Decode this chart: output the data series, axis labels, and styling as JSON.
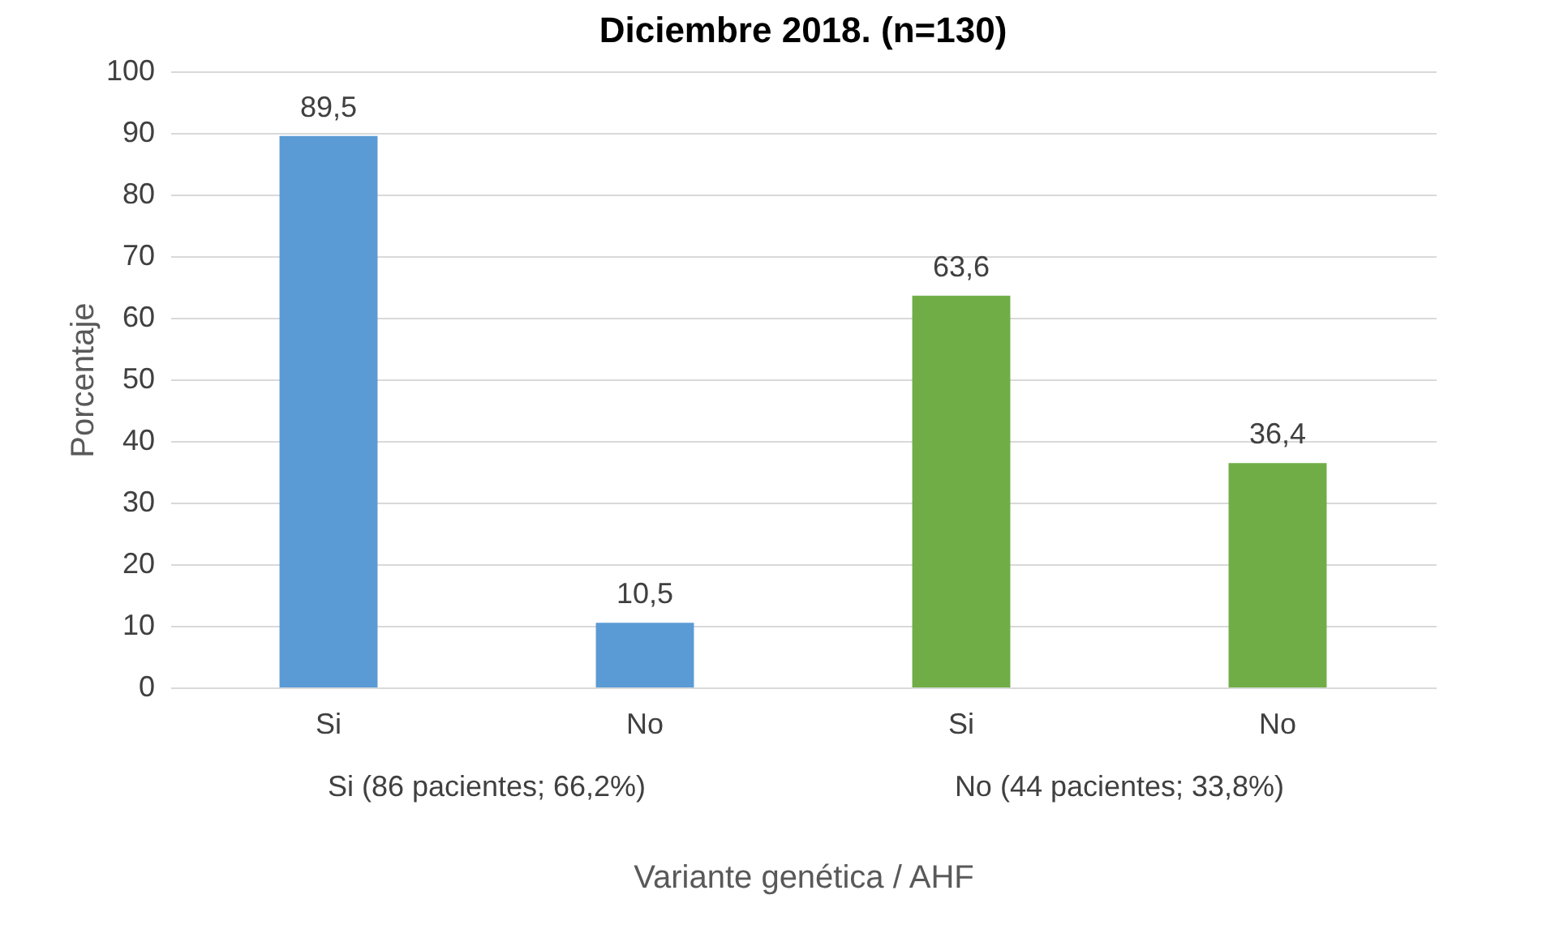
{
  "chart_data": {
    "type": "bar",
    "title": "Diciembre 2018. (n=130)",
    "xlabel": "Variante genética / AHF",
    "ylabel": "Porcentaje",
    "categories": [
      "Si",
      "No",
      "Si",
      "No"
    ],
    "values": [
      89.5,
      10.5,
      63.6,
      36.4
    ],
    "value_labels": [
      "89,5",
      "10,5",
      "63,6",
      "36,4"
    ],
    "colors": [
      "#5b9bd5",
      "#5b9bd5",
      "#70ad47",
      "#70ad47"
    ],
    "annotations": [
      "Si (86 pacientes; 66,2%)",
      "No (44 pacientes; 33,8%)"
    ],
    "ylim": [
      0,
      100
    ],
    "yticks": [
      0,
      10,
      20,
      30,
      40,
      50,
      60,
      70,
      80,
      90,
      100
    ],
    "grid": "y"
  }
}
